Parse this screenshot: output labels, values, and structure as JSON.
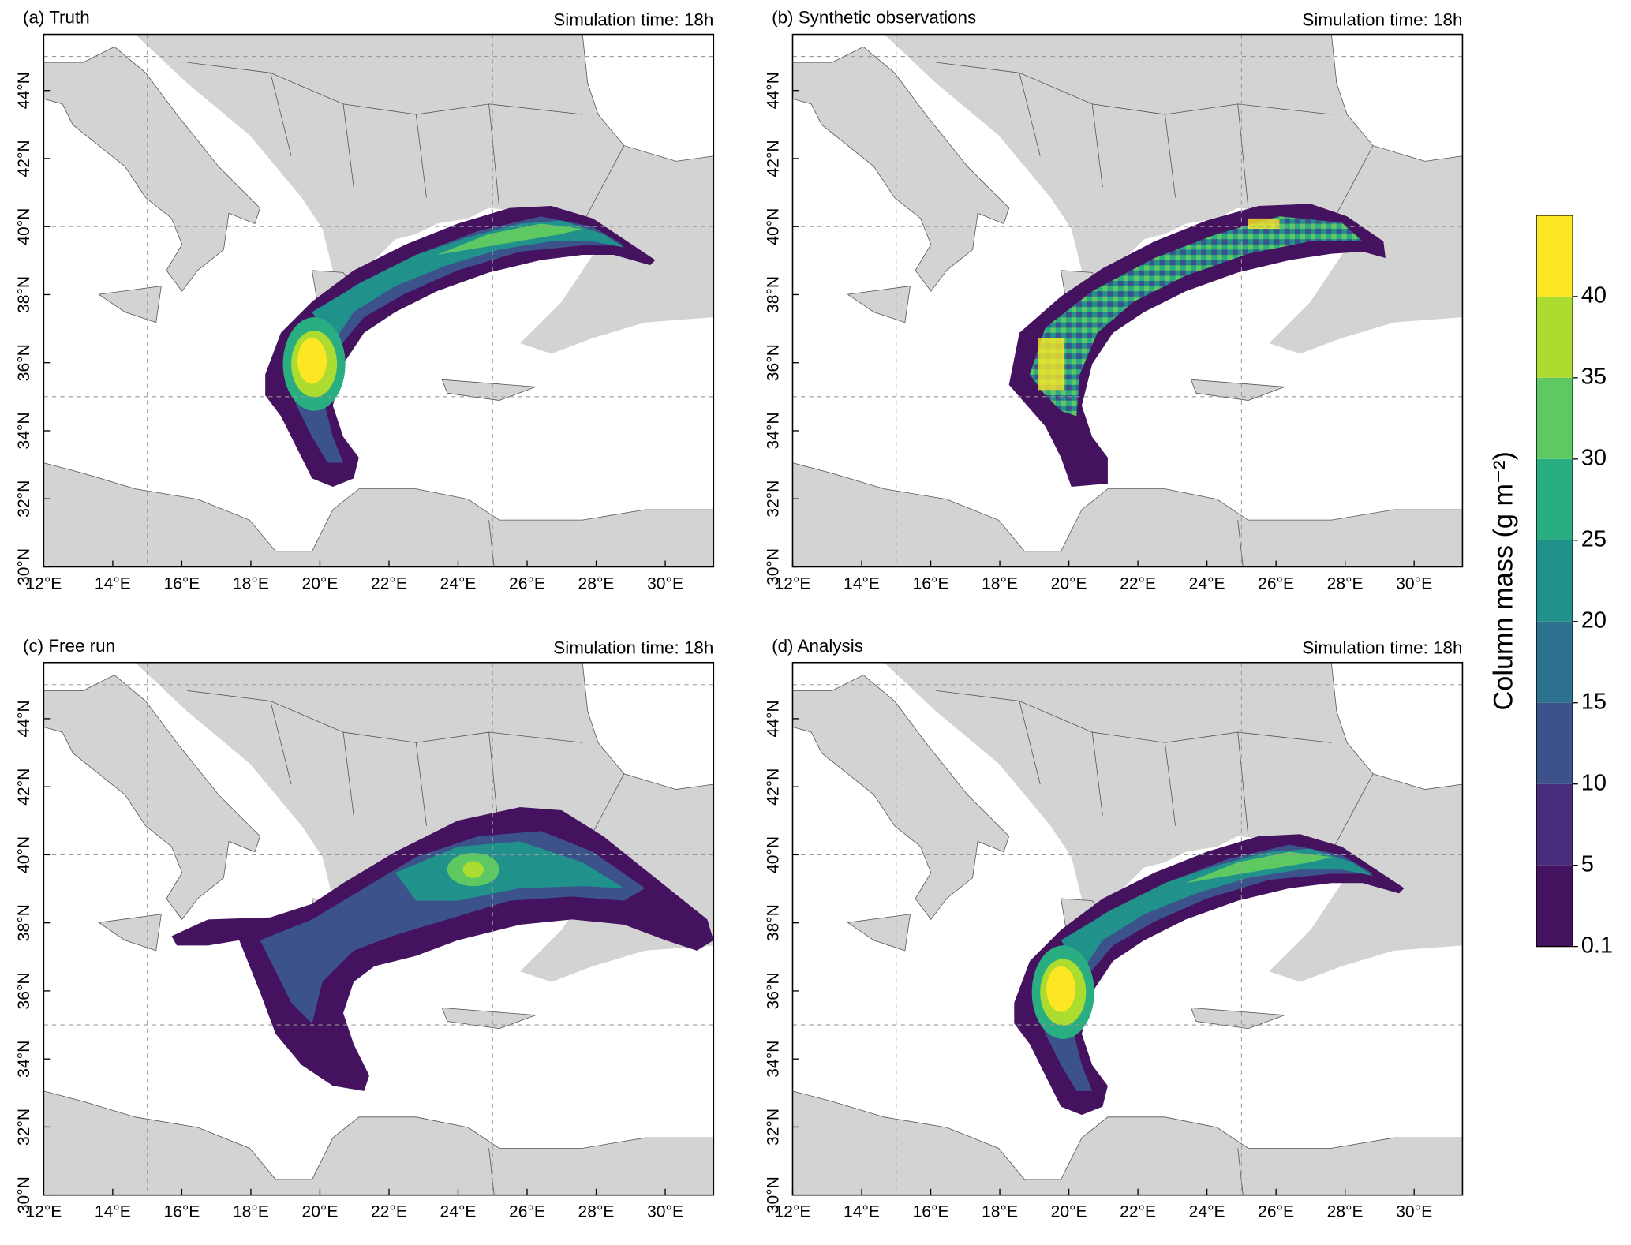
{
  "panels": [
    {
      "title": "(a) Truth",
      "time_label": "Simulation time: 18h"
    },
    {
      "title": "(b) Synthetic observations",
      "time_label": "Simulation time: 18h"
    },
    {
      "title": "(c) Free run",
      "time_label": "Simulation time: 18h"
    },
    {
      "title": "(d) Analysis",
      "time_label": "Simulation time: 18h"
    }
  ],
  "xlim": [
    12,
    31.4
  ],
  "ylim": [
    30,
    45.65
  ],
  "xticks": [
    {
      "value": 12,
      "label": "12°E"
    },
    {
      "value": 14,
      "label": "14°E"
    },
    {
      "value": 16,
      "label": "16°E"
    },
    {
      "value": 18,
      "label": "18°E"
    },
    {
      "value": 20,
      "label": "20°E"
    },
    {
      "value": 22,
      "label": "22°E"
    },
    {
      "value": 24,
      "label": "24°E"
    },
    {
      "value": 26,
      "label": "26°E"
    },
    {
      "value": 28,
      "label": "28°E"
    },
    {
      "value": 30,
      "label": "30°E"
    }
  ],
  "yticks": [
    {
      "value": 30,
      "label": "30°N"
    },
    {
      "value": 32,
      "label": "32°N"
    },
    {
      "value": 34,
      "label": "34°N"
    },
    {
      "value": 36,
      "label": "36°N"
    },
    {
      "value": 38,
      "label": "38°N"
    },
    {
      "value": 40,
      "label": "40°N"
    },
    {
      "value": 42,
      "label": "42°N"
    },
    {
      "value": 44,
      "label": "44°N"
    }
  ],
  "grid_lon": [
    15,
    25
  ],
  "grid_lat": [
    35,
    40,
    45
  ],
  "colorbar": {
    "label": "Column mass (g m⁻²)",
    "ticks": [
      0.1,
      5,
      10,
      15,
      20,
      25,
      30,
      35,
      40
    ],
    "colors": [
      "#45125f",
      "#472d7b",
      "#3b528b",
      "#2c728e",
      "#21918c",
      "#28ae80",
      "#5ec962",
      "#addc30",
      "#fde725"
    ]
  }
}
